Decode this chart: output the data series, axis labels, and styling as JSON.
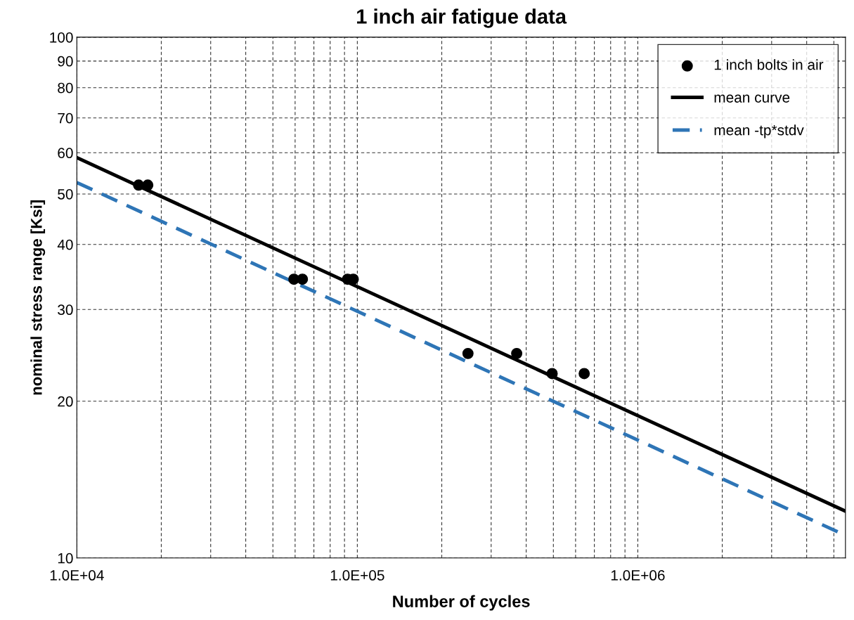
{
  "chart_data": {
    "type": "scatter",
    "title": "1 inch air fatigue data",
    "xlabel": "Number of cycles",
    "ylabel": "nominal stress range [Ksi]",
    "log": "xy",
    "grid": true,
    "legend": "top right",
    "xlim": [
      10000,
      5500000
    ],
    "xticks": [
      {
        "value": 10000,
        "label": "1.0E+04"
      },
      {
        "value": 20000,
        "label": null
      },
      {
        "value": 30000,
        "label": null
      },
      {
        "value": 40000,
        "label": null
      },
      {
        "value": 50000,
        "label": null
      },
      {
        "value": 60000,
        "label": null
      },
      {
        "value": 70000,
        "label": null
      },
      {
        "value": 80000,
        "label": null
      },
      {
        "value": 90000,
        "label": null
      },
      {
        "value": 100000,
        "label": "1.0E+05"
      },
      {
        "value": 200000,
        "label": null
      },
      {
        "value": 300000,
        "label": null
      },
      {
        "value": 400000,
        "label": null
      },
      {
        "value": 500000,
        "label": null
      },
      {
        "value": 600000,
        "label": null
      },
      {
        "value": 700000,
        "label": null
      },
      {
        "value": 800000,
        "label": null
      },
      {
        "value": 900000,
        "label": null
      },
      {
        "value": 1000000,
        "label": "1.0E+06"
      },
      {
        "value": 2000000,
        "label": null
      },
      {
        "value": 3000000,
        "label": null
      },
      {
        "value": 4000000,
        "label": null
      },
      {
        "value": 5000000,
        "label": null
      }
    ],
    "ylim": [
      10,
      100
    ],
    "yticks": [
      10,
      20,
      30,
      40,
      50,
      60,
      70,
      80,
      90,
      100
    ],
    "series": [
      {
        "name": "1 inch bolts in air",
        "marker": "circle",
        "color": "#000000",
        "x": [
          16600,
          17900,
          59400,
          63700,
          92300,
          96700,
          248000,
          370000,
          495000,
          644000
        ],
        "values": [
          52,
          52,
          34.3,
          34.3,
          34.3,
          34.3,
          24.7,
          24.7,
          22.6,
          22.6
        ]
      },
      {
        "name": "mean curve",
        "type": "line",
        "marker": "none",
        "line_style": "solid",
        "color": "#000000",
        "x": [
          10000,
          5500000
        ],
        "values": [
          58.7,
          12.3
        ]
      },
      {
        "name": "mean -tp*stdv",
        "type": "line",
        "marker": "none",
        "line_style": "dashed",
        "color": "#2e75b6",
        "x": [
          10000,
          5500000
        ],
        "values": [
          52.6,
          11.05
        ]
      }
    ]
  }
}
